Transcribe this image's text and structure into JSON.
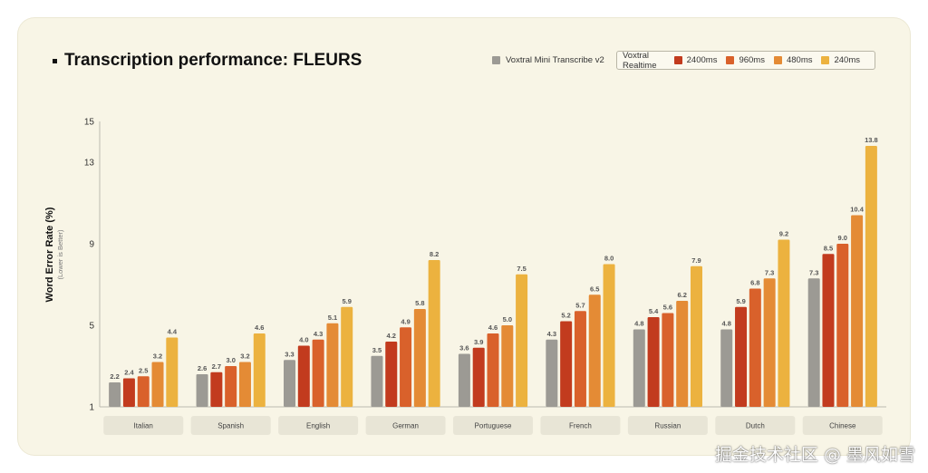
{
  "title": "Transcription performance: FLEURS",
  "legend": {
    "mini": {
      "label": "Voxtral Mini Transcribe v2",
      "color": "#9c9a94"
    },
    "group_label": "Voxtral Realtime",
    "items": [
      {
        "label": "2400ms",
        "color": "#c23b1e"
      },
      {
        "label": "960ms",
        "color": "#d9612b"
      },
      {
        "label": "480ms",
        "color": "#e48b35"
      },
      {
        "label": "240ms",
        "color": "#ecb23f"
      }
    ]
  },
  "watermark": "掘金技术社区 @ 墨风如雪",
  "chart_data": {
    "type": "bar",
    "title": "Transcription performance: FLEURS",
    "ylabel": "Word Error Rate (%)",
    "ylabel_sub": "(Lower is Better)",
    "xlabel": "",
    "ylim": [
      1,
      15
    ],
    "yticks": [
      1,
      5,
      9,
      13,
      15
    ],
    "legend_position": "top-right",
    "categories": [
      "Italian",
      "Spanish",
      "English",
      "German",
      "Portuguese",
      "French",
      "Russian",
      "Dutch",
      "Chinese"
    ],
    "series": [
      {
        "name": "Voxtral Mini Transcribe v2",
        "color": "#9c9a94",
        "values": [
          2.2,
          2.6,
          3.3,
          3.5,
          3.6,
          4.3,
          4.8,
          4.8,
          7.3
        ]
      },
      {
        "name": "2400ms",
        "color": "#c23b1e",
        "values": [
          2.4,
          2.7,
          4.0,
          4.2,
          3.9,
          5.2,
          5.4,
          5.9,
          8.5
        ]
      },
      {
        "name": "960ms",
        "color": "#d9612b",
        "values": [
          2.5,
          3.0,
          4.3,
          4.9,
          4.6,
          5.7,
          5.6,
          6.8,
          9.0
        ]
      },
      {
        "name": "480ms",
        "color": "#e48b35",
        "values": [
          3.2,
          3.2,
          5.1,
          5.8,
          5.0,
          6.5,
          6.2,
          7.3,
          10.4
        ]
      },
      {
        "name": "240ms",
        "color": "#ecb23f",
        "values": [
          4.4,
          4.6,
          5.9,
          8.2,
          7.5,
          8.0,
          7.9,
          9.2,
          13.8
        ]
      }
    ]
  }
}
